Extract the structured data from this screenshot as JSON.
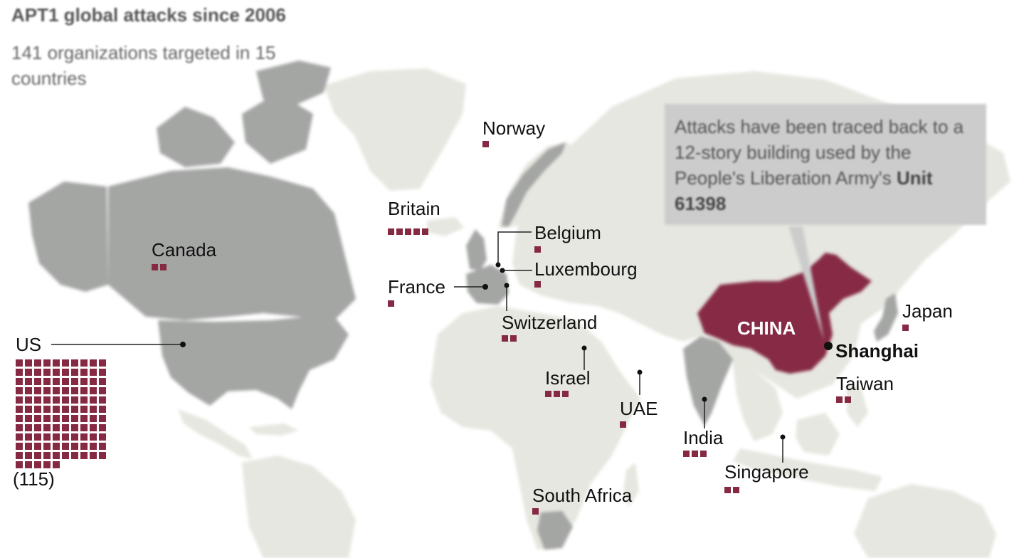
{
  "header": {
    "title": "APT1 global attacks since 2006",
    "subtitle": "141 organizations targeted in 15 countries"
  },
  "callout": {
    "text": "Attacks have been traced back to a 12-story building used by the People's Liberation Army's",
    "unit": "Unit 61398"
  },
  "origin": {
    "country_label": "CHINA",
    "city": "Shanghai"
  },
  "targets": [
    {
      "country": "US",
      "attacks": 115,
      "count_label": "(115)"
    },
    {
      "country": "Canada",
      "attacks": 2
    },
    {
      "country": "Britain",
      "attacks": 5
    },
    {
      "country": "Norway",
      "attacks": 1
    },
    {
      "country": "Belgium",
      "attacks": 1
    },
    {
      "country": "Luxembourg",
      "attacks": 1
    },
    {
      "country": "France",
      "attacks": 1
    },
    {
      "country": "Switzerland",
      "attacks": 2
    },
    {
      "country": "Israel",
      "attacks": 3
    },
    {
      "country": "UAE",
      "attacks": 1
    },
    {
      "country": "India",
      "attacks": 3
    },
    {
      "country": "Singapore",
      "attacks": 2
    },
    {
      "country": "Taiwan",
      "attacks": 2
    },
    {
      "country": "Japan",
      "attacks": 1
    },
    {
      "country": "South Africa",
      "attacks": 1
    }
  ],
  "colors": {
    "origin": "#862a44",
    "targeted_land": "#a4a6a4",
    "other_land": "#e6e7e0",
    "marker": "#862a44"
  }
}
